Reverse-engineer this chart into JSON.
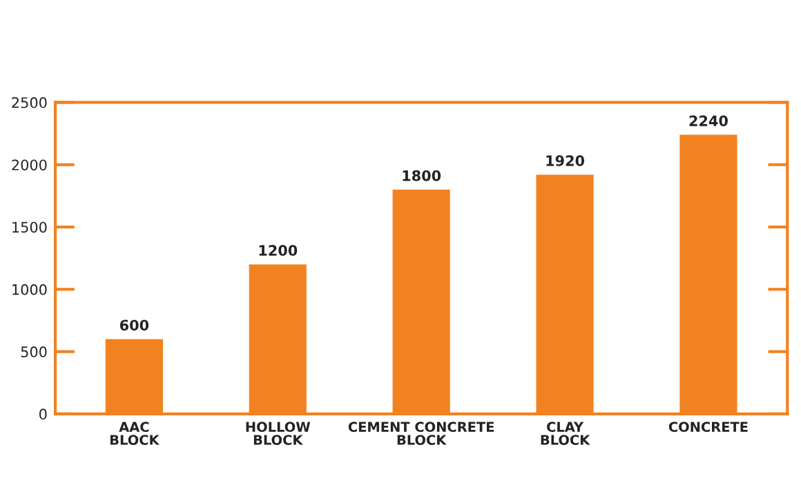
{
  "chart_data": {
    "type": "bar",
    "categories": [
      "AAC\nBLOCK",
      "HOLLOW\nBLOCK",
      "CEMENT CONCRETE\nBLOCK",
      "CLAY\nBLOCK",
      "CONCRETE"
    ],
    "values": [
      600,
      1200,
      1800,
      1920,
      2240
    ],
    "color": "#f28220",
    "ylim": [
      0,
      2500
    ],
    "yticks": [
      0,
      500,
      1000,
      1500,
      2000,
      2500
    ],
    "data_labels": true,
    "grid": false,
    "legend": false
  }
}
